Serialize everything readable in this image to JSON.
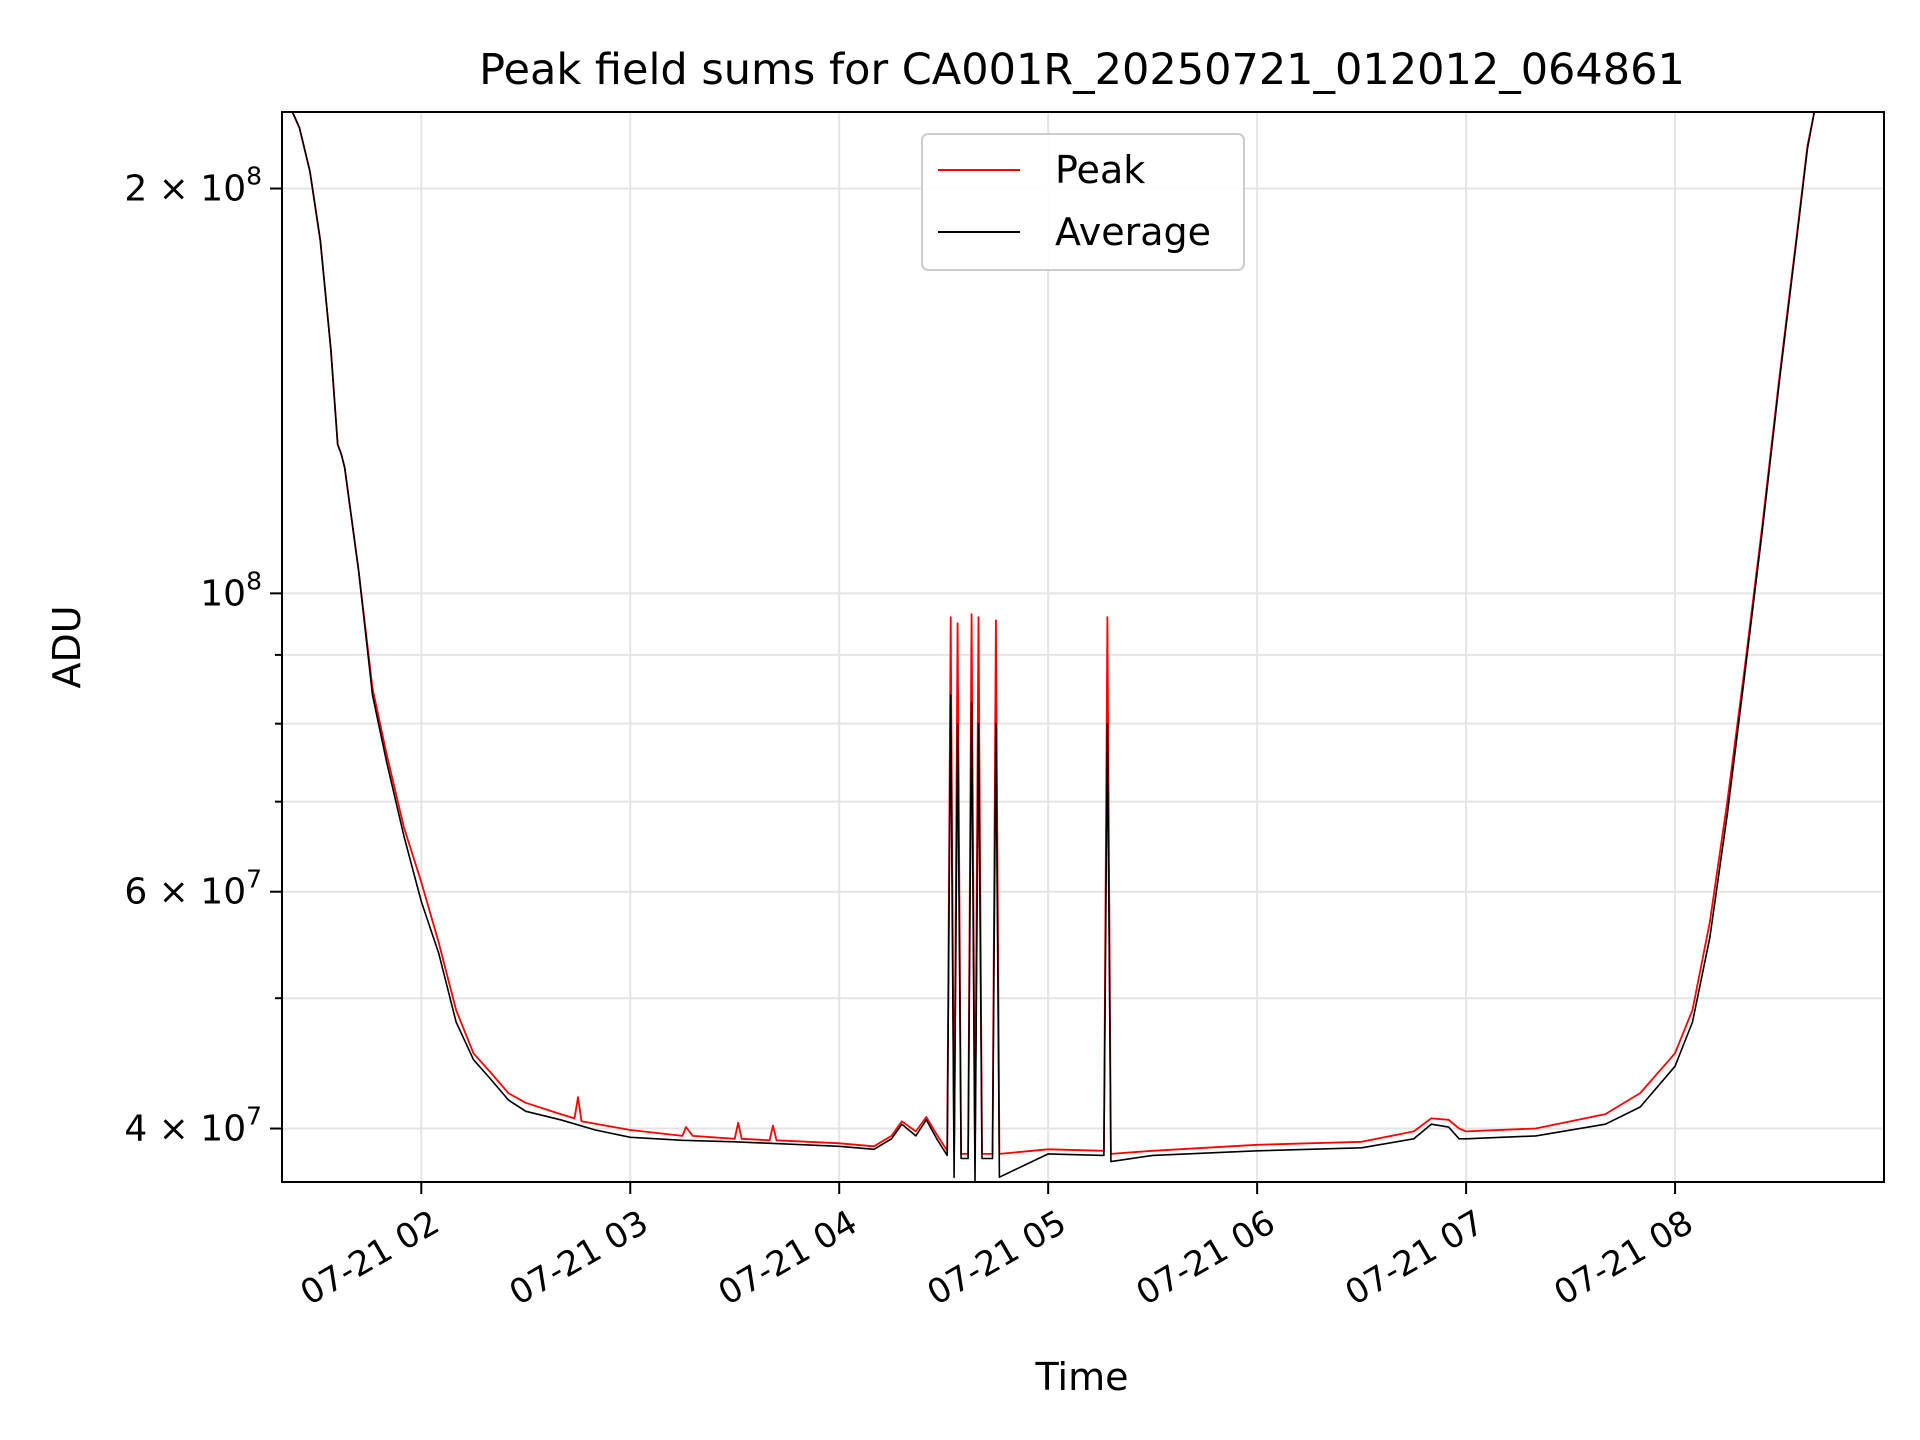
{
  "chart_data": {
    "type": "line",
    "title": "Peak field sums for CA001R_20250721_012012_064861",
    "xlabel": "Time",
    "ylabel": "ADU",
    "yscale": "log",
    "ylim": [
      36500000,
      228000000
    ],
    "xlim": [
      "2025-07-21 01:20",
      "2025-07-21 09:00"
    ],
    "grid": true,
    "legend_position": "top-center",
    "x_ticks": [
      {
        "t": "2025-07-21 02:00",
        "label": "07-21 02"
      },
      {
        "t": "2025-07-21 03:00",
        "label": "07-21 03"
      },
      {
        "t": "2025-07-21 04:00",
        "label": "07-21 04"
      },
      {
        "t": "2025-07-21 05:00",
        "label": "07-21 05"
      },
      {
        "t": "2025-07-21 06:00",
        "label": "07-21 06"
      },
      {
        "t": "2025-07-21 07:00",
        "label": "07-21 07"
      },
      {
        "t": "2025-07-21 08:00",
        "label": "07-21 08"
      }
    ],
    "y_ticks": [
      {
        "v": 40000000,
        "base": "4 × 10",
        "exp": "7"
      },
      {
        "v": 60000000,
        "base": "6 × 10",
        "exp": "7"
      },
      {
        "v": 100000000,
        "base": "10",
        "exp": "8"
      },
      {
        "v": 200000000,
        "base": "2 × 10",
        "exp": "8"
      }
    ],
    "y_minor_ticks": [
      50000000,
      70000000,
      80000000,
      90000000
    ],
    "series": [
      {
        "name": "Peak",
        "color": "#ff0000",
        "points": [
          [
            "2025-07-21 01:23",
            228000000
          ],
          [
            "2025-07-21 01:25",
            222000000
          ],
          [
            "2025-07-21 01:28",
            206000000
          ],
          [
            "2025-07-21 01:31",
            183000000
          ],
          [
            "2025-07-21 01:34",
            152000000
          ],
          [
            "2025-07-21 01:36",
            129000000
          ],
          [
            "2025-07-21 01:37",
            127000000
          ],
          [
            "2025-07-21 01:38",
            124000000
          ],
          [
            "2025-07-21 01:42",
            104000000
          ],
          [
            "2025-07-21 01:46",
            85000000
          ],
          [
            "2025-07-21 01:50",
            76000000
          ],
          [
            "2025-07-21 01:55",
            67000000
          ],
          [
            "2025-07-21 02:00",
            61000000
          ],
          [
            "2025-07-21 02:05",
            55000000
          ],
          [
            "2025-07-21 02:10",
            49000000
          ],
          [
            "2025-07-21 02:15",
            45500000
          ],
          [
            "2025-07-21 02:20",
            44000000
          ],
          [
            "2025-07-21 02:25",
            42500000
          ],
          [
            "2025-07-21 02:30",
            41800000
          ],
          [
            "2025-07-21 02:40",
            41000000
          ],
          [
            "2025-07-21 02:44",
            40700000
          ],
          [
            "2025-07-21 02:45",
            42200000
          ],
          [
            "2025-07-21 02:46",
            40500000
          ],
          [
            "2025-07-21 03:00",
            39900000
          ],
          [
            "2025-07-21 03:15",
            39500000
          ],
          [
            "2025-07-21 03:16",
            40100000
          ],
          [
            "2025-07-21 03:18",
            39500000
          ],
          [
            "2025-07-21 03:30",
            39300000
          ],
          [
            "2025-07-21 03:31",
            40400000
          ],
          [
            "2025-07-21 03:32",
            39300000
          ],
          [
            "2025-07-21 03:40",
            39200000
          ],
          [
            "2025-07-21 03:41",
            40200000
          ],
          [
            "2025-07-21 03:42",
            39200000
          ],
          [
            "2025-07-21 04:00",
            39000000
          ],
          [
            "2025-07-21 04:10",
            38800000
          ],
          [
            "2025-07-21 04:15",
            39500000
          ],
          [
            "2025-07-21 04:18",
            40500000
          ],
          [
            "2025-07-21 04:22",
            39800000
          ],
          [
            "2025-07-21 04:25",
            40800000
          ],
          [
            "2025-07-21 04:28",
            39600000
          ],
          [
            "2025-07-21 04:31",
            38500000
          ],
          [
            "2025-07-21 04:32",
            96000000
          ],
          [
            "2025-07-21 04:33",
            38300000
          ],
          [
            "2025-07-21 04:34",
            95000000
          ],
          [
            "2025-07-21 04:35",
            38300000
          ],
          [
            "2025-07-21 04:37",
            38300000
          ],
          [
            "2025-07-21 04:38",
            96500000
          ],
          [
            "2025-07-21 04:39",
            38300000
          ],
          [
            "2025-07-21 04:40",
            96000000
          ],
          [
            "2025-07-21 04:41",
            38300000
          ],
          [
            "2025-07-21 04:44",
            38300000
          ],
          [
            "2025-07-21 04:45",
            95500000
          ],
          [
            "2025-07-21 04:46",
            38300000
          ],
          [
            "2025-07-21 05:00",
            38600000
          ],
          [
            "2025-07-21 05:16",
            38500000
          ],
          [
            "2025-07-21 05:17",
            96000000
          ],
          [
            "2025-07-21 05:18",
            38300000
          ],
          [
            "2025-07-21 05:30",
            38500000
          ],
          [
            "2025-07-21 06:00",
            38900000
          ],
          [
            "2025-07-21 06:30",
            39100000
          ],
          [
            "2025-07-21 06:45",
            39800000
          ],
          [
            "2025-07-21 06:50",
            40700000
          ],
          [
            "2025-07-21 06:55",
            40600000
          ],
          [
            "2025-07-21 06:58",
            40000000
          ],
          [
            "2025-07-21 07:00",
            39800000
          ],
          [
            "2025-07-21 07:20",
            40000000
          ],
          [
            "2025-07-21 07:40",
            41000000
          ],
          [
            "2025-07-21 07:50",
            42500000
          ],
          [
            "2025-07-21 08:00",
            45500000
          ],
          [
            "2025-07-21 08:05",
            49000000
          ],
          [
            "2025-07-21 08:10",
            57000000
          ],
          [
            "2025-07-21 08:15",
            70000000
          ],
          [
            "2025-07-21 08:20",
            88000000
          ],
          [
            "2025-07-21 08:25",
            112000000
          ],
          [
            "2025-07-21 08:30",
            145000000
          ],
          [
            "2025-07-21 08:35",
            185000000
          ],
          [
            "2025-07-21 08:38",
            215000000
          ],
          [
            "2025-07-21 08:40",
            228000000
          ]
        ]
      },
      {
        "name": "Average",
        "color": "#000000",
        "points": [
          [
            "2025-07-21 01:23",
            228000000
          ],
          [
            "2025-07-21 01:25",
            222000000
          ],
          [
            "2025-07-21 01:28",
            206000000
          ],
          [
            "2025-07-21 01:31",
            183000000
          ],
          [
            "2025-07-21 01:34",
            152000000
          ],
          [
            "2025-07-21 01:36",
            129000000
          ],
          [
            "2025-07-21 01:37",
            127000000
          ],
          [
            "2025-07-21 01:38",
            124000000
          ],
          [
            "2025-07-21 01:42",
            104000000
          ],
          [
            "2025-07-21 01:46",
            84000000
          ],
          [
            "2025-07-21 01:50",
            75000000
          ],
          [
            "2025-07-21 01:55",
            66000000
          ],
          [
            "2025-07-21 02:00",
            59000000
          ],
          [
            "2025-07-21 02:05",
            54000000
          ],
          [
            "2025-07-21 02:10",
            48000000
          ],
          [
            "2025-07-21 02:15",
            45000000
          ],
          [
            "2025-07-21 02:20",
            43500000
          ],
          [
            "2025-07-21 02:25",
            42000000
          ],
          [
            "2025-07-21 02:30",
            41200000
          ],
          [
            "2025-07-21 02:40",
            40600000
          ],
          [
            "2025-07-21 02:50",
            39900000
          ],
          [
            "2025-07-21 03:00",
            39400000
          ],
          [
            "2025-07-21 03:15",
            39200000
          ],
          [
            "2025-07-21 03:30",
            39100000
          ],
          [
            "2025-07-21 04:00",
            38800000
          ],
          [
            "2025-07-21 04:10",
            38600000
          ],
          [
            "2025-07-21 04:15",
            39300000
          ],
          [
            "2025-07-21 04:18",
            40300000
          ],
          [
            "2025-07-21 04:22",
            39500000
          ],
          [
            "2025-07-21 04:25",
            40600000
          ],
          [
            "2025-07-21 04:28",
            39300000
          ],
          [
            "2025-07-21 04:31",
            38200000
          ],
          [
            "2025-07-21 04:32",
            84000000
          ],
          [
            "2025-07-21 04:33",
            36800000
          ],
          [
            "2025-07-21 04:34",
            80000000
          ],
          [
            "2025-07-21 04:35",
            38000000
          ],
          [
            "2025-07-21 04:37",
            38000000
          ],
          [
            "2025-07-21 04:38",
            83000000
          ],
          [
            "2025-07-21 04:39",
            36500000
          ],
          [
            "2025-07-21 04:40",
            80000000
          ],
          [
            "2025-07-21 04:41",
            38000000
          ],
          [
            "2025-07-21 04:44",
            38000000
          ],
          [
            "2025-07-21 04:45",
            80000000
          ],
          [
            "2025-07-21 04:46",
            36800000
          ],
          [
            "2025-07-21 05:00",
            38300000
          ],
          [
            "2025-07-21 05:16",
            38200000
          ],
          [
            "2025-07-21 05:17",
            80000000
          ],
          [
            "2025-07-21 05:18",
            37800000
          ],
          [
            "2025-07-21 05:30",
            38200000
          ],
          [
            "2025-07-21 06:00",
            38500000
          ],
          [
            "2025-07-21 06:30",
            38700000
          ],
          [
            "2025-07-21 06:45",
            39300000
          ],
          [
            "2025-07-21 06:50",
            40300000
          ],
          [
            "2025-07-21 06:55",
            40100000
          ],
          [
            "2025-07-21 06:58",
            39300000
          ],
          [
            "2025-07-21 07:00",
            39300000
          ],
          [
            "2025-07-21 07:20",
            39500000
          ],
          [
            "2025-07-21 07:40",
            40300000
          ],
          [
            "2025-07-21 07:50",
            41500000
          ],
          [
            "2025-07-21 08:00",
            44500000
          ],
          [
            "2025-07-21 08:05",
            48000000
          ],
          [
            "2025-07-21 08:10",
            55500000
          ],
          [
            "2025-07-21 08:15",
            68500000
          ],
          [
            "2025-07-21 08:20",
            87000000
          ],
          [
            "2025-07-21 08:25",
            111000000
          ],
          [
            "2025-07-21 08:30",
            144000000
          ],
          [
            "2025-07-21 08:35",
            184000000
          ],
          [
            "2025-07-21 08:38",
            214000000
          ],
          [
            "2025-07-21 08:40",
            228000000
          ]
        ]
      }
    ]
  }
}
